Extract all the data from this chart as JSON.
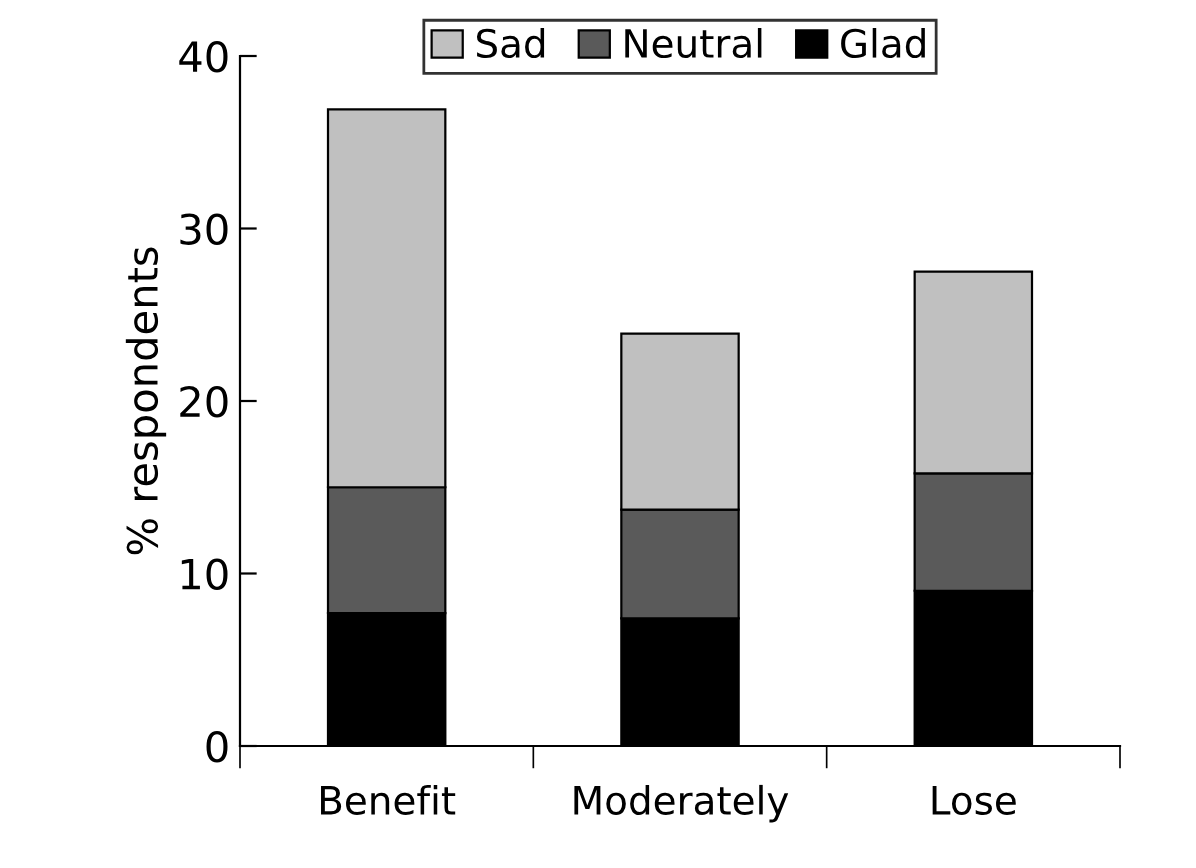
{
  "chart_data": {
    "type": "bar",
    "stacked": true,
    "ylabel": "% respondents",
    "categories": [
      "Benefit",
      "Moderately",
      "Lose"
    ],
    "series": [
      {
        "name": "Glad",
        "color": "#000000",
        "values": [
          7.7,
          7.4,
          9.0
        ]
      },
      {
        "name": "Neutral",
        "color": "#5a5a5a",
        "values": [
          7.3,
          6.3,
          6.8
        ]
      },
      {
        "name": "Sad",
        "color": "#c0c0c0",
        "values": [
          21.9,
          10.2,
          11.7
        ]
      }
    ],
    "ylim": [
      0,
      40
    ],
    "yticks": [
      0,
      10,
      20,
      30,
      40
    ],
    "grid": false,
    "legend": "top"
  }
}
